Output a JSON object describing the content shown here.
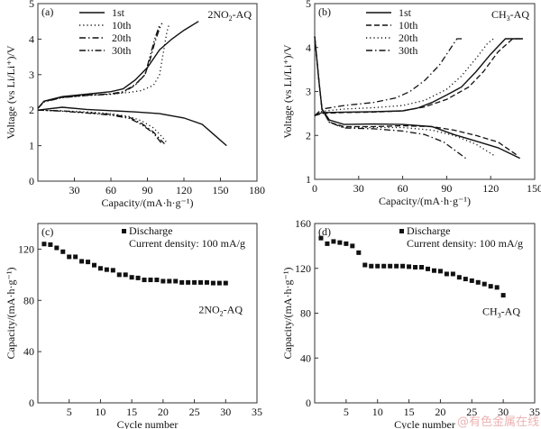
{
  "chart_data": [
    {
      "panel": "(a)",
      "type": "line",
      "title": "2NO2-AQ",
      "sample_label": {
        "pre": "2NO",
        "sub": "2",
        "post": "-AQ"
      },
      "xlabel": "Capacity/(mA·h·g⁻¹)",
      "ylabel": "Voltage (vs Li/Li⁺)/V",
      "xlim": [
        0,
        180
      ],
      "ylim": [
        0,
        5
      ],
      "xticks": [
        30,
        60,
        90,
        120,
        150,
        180
      ],
      "yticks": [
        0,
        1,
        2,
        3,
        4,
        5
      ],
      "legend_position": "top-left",
      "series": [
        {
          "name": "1st",
          "dash": "solid",
          "charge": [
            [
              0,
              2.05
            ],
            [
              5,
              2.25
            ],
            [
              20,
              2.38
            ],
            [
              40,
              2.45
            ],
            [
              60,
              2.52
            ],
            [
              70,
              2.6
            ],
            [
              80,
              2.85
            ],
            [
              90,
              3.2
            ],
            [
              100,
              3.7
            ],
            [
              110,
              4.0
            ],
            [
              120,
              4.25
            ],
            [
              132,
              4.5
            ]
          ],
          "discharge": [
            [
              0,
              2.0
            ],
            [
              20,
              2.08
            ],
            [
              40,
              2.02
            ],
            [
              80,
              1.95
            ],
            [
              100,
              1.9
            ],
            [
              120,
              1.78
            ],
            [
              135,
              1.6
            ],
            [
              145,
              1.3
            ],
            [
              155,
              1.0
            ]
          ]
        },
        {
          "name": "10th",
          "dash": "dotted",
          "charge": [
            [
              0,
              2.05
            ],
            [
              5,
              2.25
            ],
            [
              20,
              2.36
            ],
            [
              40,
              2.42
            ],
            [
              60,
              2.45
            ],
            [
              75,
              2.5
            ],
            [
              85,
              2.55
            ],
            [
              95,
              2.7
            ],
            [
              100,
              3.0
            ],
            [
              103,
              3.6
            ],
            [
              106,
              4.2
            ],
            [
              108,
              4.45
            ]
          ],
          "discharge": [
            [
              0,
              2.0
            ],
            [
              20,
              1.98
            ],
            [
              40,
              1.95
            ],
            [
              60,
              1.9
            ],
            [
              75,
              1.82
            ],
            [
              85,
              1.7
            ],
            [
              95,
              1.5
            ],
            [
              102,
              1.25
            ],
            [
              106,
              1.08
            ]
          ]
        },
        {
          "name": "20th",
          "dash": "dash-dot",
          "charge": [
            [
              0,
              2.05
            ],
            [
              5,
              2.24
            ],
            [
              20,
              2.36
            ],
            [
              40,
              2.42
            ],
            [
              60,
              2.46
            ],
            [
              70,
              2.52
            ],
            [
              80,
              2.72
            ],
            [
              88,
              3.0
            ],
            [
              92,
              3.4
            ],
            [
              96,
              3.9
            ],
            [
              100,
              4.3
            ],
            [
              102,
              4.45
            ]
          ],
          "discharge": [
            [
              0,
              2.0
            ],
            [
              20,
              1.98
            ],
            [
              40,
              1.93
            ],
            [
              60,
              1.88
            ],
            [
              75,
              1.8
            ],
            [
              85,
              1.63
            ],
            [
              95,
              1.38
            ],
            [
              104,
              1.05
            ]
          ]
        },
        {
          "name": "30th",
          "dash": "dash-dot-dot",
          "charge": [
            [
              0,
              2.05
            ],
            [
              5,
              2.23
            ],
            [
              20,
              2.35
            ],
            [
              40,
              2.41
            ],
            [
              60,
              2.45
            ],
            [
              70,
              2.5
            ],
            [
              80,
              2.7
            ],
            [
              88,
              3.0
            ],
            [
              92,
              3.5
            ],
            [
              96,
              4.0
            ],
            [
              100,
              4.4
            ]
          ],
          "discharge": [
            [
              0,
              2.0
            ],
            [
              20,
              1.97
            ],
            [
              40,
              1.92
            ],
            [
              60,
              1.86
            ],
            [
              75,
              1.77
            ],
            [
              85,
              1.6
            ],
            [
              95,
              1.35
            ],
            [
              102,
              1.05
            ]
          ]
        }
      ]
    },
    {
      "panel": "(b)",
      "type": "line",
      "title": "CH3-AQ",
      "sample_label": {
        "pre": "CH",
        "sub": "3",
        "post": "-AQ"
      },
      "xlabel": "Capacity/(mA·h·g⁻¹)",
      "ylabel": "Voltage (vs Li/Li⁺)/V",
      "xlim": [
        0,
        150
      ],
      "ylim": [
        1,
        5
      ],
      "xticks": [
        0,
        30,
        60,
        90,
        120,
        150
      ],
      "yticks": [
        1,
        2,
        3,
        4,
        5
      ],
      "legend_position": "top-left",
      "series": [
        {
          "name": "1st",
          "dash": "solid",
          "charge": [
            [
              0,
              2.45
            ],
            [
              5,
              2.52
            ],
            [
              20,
              2.53
            ],
            [
              40,
              2.54
            ],
            [
              60,
              2.56
            ],
            [
              70,
              2.62
            ],
            [
              80,
              2.75
            ],
            [
              90,
              2.92
            ],
            [
              100,
              3.1
            ],
            [
              110,
              3.45
            ],
            [
              120,
              3.85
            ],
            [
              130,
              4.2
            ],
            [
              142,
              4.2
            ]
          ],
          "discharge": [
            [
              0,
              4.25
            ],
            [
              3,
              3.2
            ],
            [
              5,
              2.6
            ],
            [
              10,
              2.35
            ],
            [
              20,
              2.25
            ],
            [
              40,
              2.26
            ],
            [
              60,
              2.25
            ],
            [
              80,
              2.2
            ],
            [
              95,
              2.02
            ],
            [
              110,
              1.87
            ],
            [
              125,
              1.72
            ],
            [
              140,
              1.48
            ]
          ]
        },
        {
          "name": "10th",
          "dash": "dashed",
          "charge": [
            [
              0,
              2.45
            ],
            [
              5,
              2.5
            ],
            [
              20,
              2.52
            ],
            [
              40,
              2.53
            ],
            [
              60,
              2.56
            ],
            [
              75,
              2.65
            ],
            [
              90,
              2.82
            ],
            [
              105,
              3.1
            ],
            [
              115,
              3.45
            ],
            [
              125,
              3.9
            ],
            [
              135,
              4.2
            ],
            [
              141,
              4.2
            ]
          ],
          "discharge": [
            [
              0,
              4.25
            ],
            [
              3,
              3.2
            ],
            [
              5,
              2.6
            ],
            [
              10,
              2.3
            ],
            [
              20,
              2.2
            ],
            [
              40,
              2.2
            ],
            [
              60,
              2.22
            ],
            [
              80,
              2.2
            ],
            [
              95,
              2.12
            ],
            [
              110,
              2.0
            ],
            [
              125,
              1.85
            ],
            [
              138,
              1.55
            ]
          ]
        },
        {
          "name": "20th",
          "dash": "dotted",
          "charge": [
            [
              0,
              2.45
            ],
            [
              5,
              2.55
            ],
            [
              20,
              2.6
            ],
            [
              40,
              2.63
            ],
            [
              60,
              2.68
            ],
            [
              75,
              2.8
            ],
            [
              90,
              3.05
            ],
            [
              100,
              3.35
            ],
            [
              110,
              3.75
            ],
            [
              118,
              4.1
            ],
            [
              122,
              4.2
            ]
          ],
          "discharge": [
            [
              0,
              4.25
            ],
            [
              3,
              3.2
            ],
            [
              5,
              2.6
            ],
            [
              10,
              2.3
            ],
            [
              20,
              2.18
            ],
            [
              40,
              2.18
            ],
            [
              60,
              2.18
            ],
            [
              80,
              2.12
            ],
            [
              95,
              2.0
            ],
            [
              110,
              1.8
            ],
            [
              122,
              1.55
            ]
          ]
        },
        {
          "name": "30th",
          "dash": "dash-dot",
          "charge": [
            [
              0,
              2.45
            ],
            [
              5,
              2.6
            ],
            [
              20,
              2.68
            ],
            [
              40,
              2.75
            ],
            [
              55,
              2.85
            ],
            [
              65,
              3.0
            ],
            [
              75,
              3.25
            ],
            [
              85,
              3.6
            ],
            [
              92,
              3.95
            ],
            [
              97,
              4.2
            ],
            [
              102,
              4.2
            ]
          ],
          "discharge": [
            [
              0,
              4.25
            ],
            [
              3,
              3.2
            ],
            [
              5,
              2.6
            ],
            [
              10,
              2.3
            ],
            [
              20,
              2.17
            ],
            [
              40,
              2.15
            ],
            [
              60,
              2.1
            ],
            [
              75,
              2.02
            ],
            [
              88,
              1.85
            ],
            [
              96,
              1.65
            ],
            [
              103,
              1.48
            ]
          ]
        }
      ]
    },
    {
      "panel": "(c)",
      "type": "scatter",
      "title": "2NO2-AQ",
      "sample_label": {
        "pre": "2NO",
        "sub": "2",
        "post": "-AQ"
      },
      "xlabel": "Cycle number",
      "ylabel": "Capacity/(mA·h·g⁻¹)",
      "xlim": [
        0,
        35
      ],
      "ylim": [
        0,
        140
      ],
      "xticks": [
        5,
        10,
        15,
        20,
        25,
        30,
        35
      ],
      "yticks": [
        0,
        40,
        80,
        120
      ],
      "legend": {
        "marker_label": "Discharge",
        "note": "Current density: 100 mA/g"
      },
      "legend_position": "top-right",
      "x": [
        1,
        2,
        3,
        4,
        5,
        6,
        7,
        8,
        9,
        10,
        11,
        12,
        13,
        14,
        15,
        16,
        17,
        18,
        19,
        20,
        21,
        22,
        23,
        24,
        25,
        26,
        27,
        28,
        29,
        30
      ],
      "values": [
        124,
        123.5,
        121,
        118,
        114,
        114,
        110.5,
        110,
        107.5,
        105,
        104,
        103.5,
        100,
        100,
        98,
        97.5,
        96,
        96,
        96,
        95,
        95,
        95,
        94,
        94,
        94,
        94,
        94,
        93.5,
        93.5,
        93.5
      ]
    },
    {
      "panel": "(d)",
      "type": "scatter",
      "title": "CH3-AQ",
      "sample_label": {
        "pre": "CH",
        "sub": "3",
        "post": "-AQ"
      },
      "xlabel": "Cycle number",
      "ylabel": "Capacity/(mA·h·g⁻¹)",
      "xlim": [
        0,
        35
      ],
      "ylim": [
        0,
        160
      ],
      "xticks": [
        5,
        10,
        15,
        20,
        25,
        30,
        35
      ],
      "yticks": [
        0,
        40,
        80,
        120,
        160
      ],
      "legend": {
        "marker_label": "Discharge",
        "note": "Current density: 100 mA/g"
      },
      "legend_position": "top-right",
      "x": [
        1,
        2,
        3,
        4,
        5,
        6,
        7,
        8,
        9,
        10,
        11,
        12,
        13,
        14,
        15,
        16,
        17,
        18,
        19,
        20,
        21,
        22,
        23,
        24,
        25,
        26,
        27,
        28,
        29,
        30
      ],
      "values": [
        147,
        142,
        144,
        143,
        142,
        140,
        134,
        123,
        122,
        122,
        122,
        122,
        122,
        122,
        121.5,
        121,
        121,
        119.5,
        118,
        117.5,
        115,
        115,
        112,
        110.5,
        109,
        107.5,
        106,
        104,
        103,
        96
      ]
    }
  ],
  "watermark": "@有色金属在线"
}
